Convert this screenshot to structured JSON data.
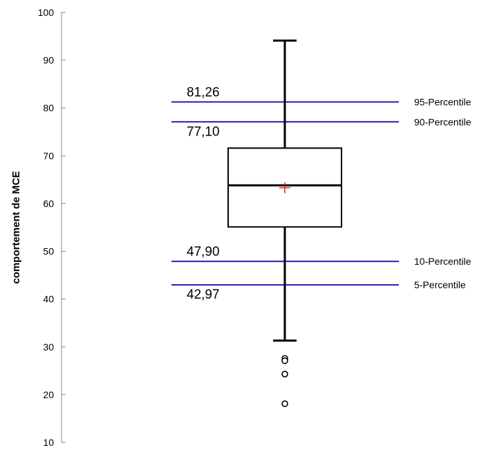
{
  "chart_data": {
    "type": "box",
    "ylabel": "comportement de MCE",
    "ylim": [
      10,
      100
    ],
    "yticks": [
      "10",
      "20",
      "30",
      "40",
      "50",
      "60",
      "70",
      "80",
      "90",
      "100"
    ],
    "box": {
      "whisker_low": 31.3,
      "q1": 55.1,
      "median": 63.8,
      "mean": 63.3,
      "q3": 71.6,
      "whisker_high": 94.1,
      "outliers": [
        27.6,
        27.1,
        24.3,
        18.1
      ]
    },
    "reference_lines": [
      {
        "label": "95-Percentile",
        "value": 81.26,
        "value_text": "81,26",
        "value_position": "above"
      },
      {
        "label": "90-Percentile",
        "value": 77.1,
        "value_text": "77,10",
        "value_position": "below"
      },
      {
        "label": "10-Percentile",
        "value": 47.9,
        "value_text": "47,90",
        "value_position": "above"
      },
      {
        "label": "5-Percentile",
        "value": 42.97,
        "value_text": "42,97",
        "value_position": "below"
      }
    ],
    "colors": {
      "reference_line": "#1f1fb4",
      "box": "#000000",
      "mean_marker": "#e00000"
    }
  }
}
